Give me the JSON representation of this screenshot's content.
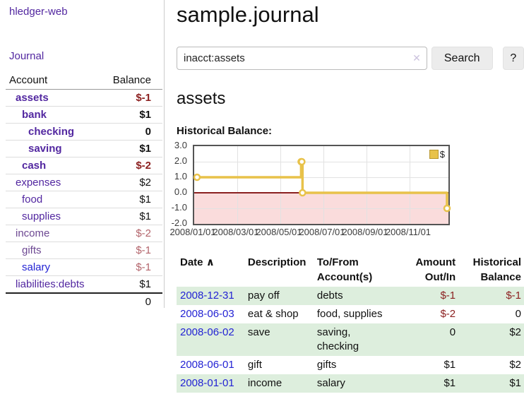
{
  "colors": {
    "link_purple": "#5227a0",
    "muted_purple": "#6d4892",
    "link_blue": "#2323d4",
    "negative_red": "#8b1f1f",
    "muted_rose": "#b3646b",
    "row_green": "#ddeedd",
    "chart_gold": "#e8c24a",
    "chart_pink": "#fadcdc",
    "chart_zero_red": "#8b2020",
    "chart_border": "#545454"
  },
  "icons": {
    "sort_asc": "∧",
    "clear": "✕"
  },
  "sidebar": {
    "brand": "hledger-web",
    "journal_link": "Journal",
    "columns": {
      "account": "Account",
      "balance": "Balance"
    },
    "accounts": [
      {
        "name": "assets",
        "balance": "$-1",
        "level": 1,
        "bold": true,
        "balance_style": "negative"
      },
      {
        "name": "bank",
        "balance": "$1",
        "level": 2,
        "bold": true,
        "balance_style": "normal"
      },
      {
        "name": "checking",
        "balance": "0",
        "level": 3,
        "bold": true,
        "balance_style": "normal"
      },
      {
        "name": "saving",
        "balance": "$1",
        "level": 3,
        "bold": true,
        "balance_style": "normal"
      },
      {
        "name": "cash",
        "balance": "$-2",
        "level": 2,
        "bold": true,
        "balance_style": "negative"
      },
      {
        "name": "expenses",
        "balance": "$2",
        "level": 1,
        "bold": false,
        "balance_style": "normal"
      },
      {
        "name": "food",
        "balance": "$1",
        "level": 2,
        "bold": false,
        "balance_style": "normal"
      },
      {
        "name": "supplies",
        "balance": "$1",
        "level": 2,
        "bold": false,
        "balance_style": "normal"
      },
      {
        "name": "income",
        "balance": "$-2",
        "level": 1,
        "bold": false,
        "balance_style": "rose"
      },
      {
        "name": "gifts",
        "balance": "$-1",
        "level": 2,
        "bold": false,
        "balance_style": "rose"
      },
      {
        "name": "salary",
        "balance": "$-1",
        "level": 2,
        "bold": false,
        "balance_style": "rose"
      },
      {
        "name": "liabilities:debts",
        "balance": "$1",
        "level": 1,
        "bold": false,
        "balance_style": "normal"
      }
    ],
    "total": "0"
  },
  "header": {
    "title": "sample.journal"
  },
  "search": {
    "query": "inacct:assets",
    "button_label": "Search",
    "help_label": "?"
  },
  "content": {
    "account_heading": "assets",
    "chart_heading": "Historical Balance:"
  },
  "chart_data": {
    "type": "line",
    "step": true,
    "title": "Historical Balance",
    "series": [
      {
        "name": "$",
        "color": "#e8c24a",
        "points": [
          [
            "2008-01-01",
            1
          ],
          [
            "2008-06-01",
            2
          ],
          [
            "2008-06-02",
            2
          ],
          [
            "2008-06-03",
            0
          ],
          [
            "2008-12-31",
            -1
          ]
        ]
      }
    ],
    "x_ticks": [
      "2008/01/01",
      "2008/03/01",
      "2008/05/01",
      "2008/07/01",
      "2008/09/01",
      "2008/11/01"
    ],
    "y_ticks": [
      "3.0",
      "2.0",
      "1.0",
      "0.0",
      "-1.0",
      "-2.0"
    ],
    "ylim": [
      -2,
      3
    ],
    "grid": true,
    "negative_region": true,
    "legend_position": "top-right"
  },
  "register": {
    "columns": {
      "date": "Date",
      "description": "Description",
      "accounts": "To/From Account(s)",
      "amount": "Amount Out/In",
      "balance": "Historical Balance"
    },
    "sorted_by": "date-ascending",
    "rows": [
      {
        "date": "2008-12-31",
        "description": "pay off",
        "accounts": "debts",
        "amount": "$-1",
        "balance": "$-1"
      },
      {
        "date": "2008-06-03",
        "description": "eat & shop",
        "accounts": "food, supplies",
        "amount": "$-2",
        "balance": "0"
      },
      {
        "date": "2008-06-02",
        "description": "save",
        "accounts": "saving, checking",
        "amount": "0",
        "balance": "$2"
      },
      {
        "date": "2008-06-01",
        "description": "gift",
        "accounts": "gifts",
        "amount": "$1",
        "balance": "$2"
      },
      {
        "date": "2008-01-01",
        "description": "income",
        "accounts": "salary",
        "amount": "$1",
        "balance": "$1"
      }
    ]
  }
}
